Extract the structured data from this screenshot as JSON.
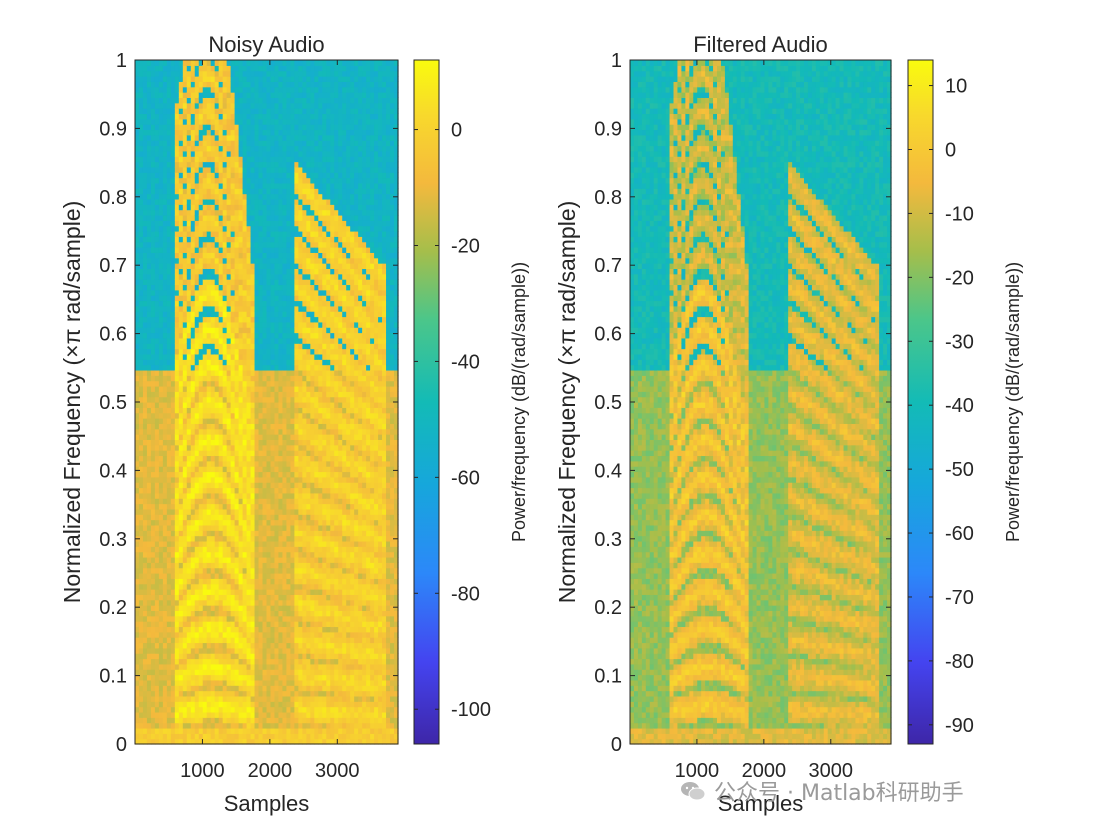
{
  "chart_data": [
    {
      "type": "heatmap",
      "title": "Noisy Audio",
      "xlabel": "Samples",
      "ylabel": "Normalized Frequency  (×π rad/sample)",
      "xlim": [
        0,
        3900
      ],
      "ylim": [
        0,
        1
      ],
      "x_ticks": [
        1000,
        2000,
        3000
      ],
      "x_tick_labels": [
        "1000",
        "2000",
        "3000"
      ],
      "y_ticks": [
        0,
        0.1,
        0.2,
        0.3,
        0.4,
        0.5,
        0.6,
        0.7,
        0.8,
        0.9,
        1
      ],
      "y_tick_labels": [
        "0",
        "0.1",
        "0.2",
        "0.3",
        "0.4",
        "0.5",
        "0.6",
        "0.7",
        "0.8",
        "0.9",
        "1"
      ],
      "colorbar": {
        "label": "Power/frequency (dB/(rad/sample))",
        "clim": [
          -106,
          12
        ],
        "ticks": [
          0,
          -20,
          -40,
          -60,
          -80,
          -100
        ],
        "tick_labels": [
          "0",
          "-20",
          "-40",
          "-60",
          "-80",
          "-100"
        ],
        "colormap": "parula"
      },
      "description_values": {
        "noise_floor_db_below_0_55": -12,
        "background_db_above_0_55": -52,
        "harmonic_peak_db": 5
      }
    },
    {
      "type": "heatmap",
      "title": "Filtered Audio",
      "xlabel": "Samples",
      "ylabel": "Normalized Frequency  (×π rad/sample)",
      "xlim": [
        0,
        3900
      ],
      "ylim": [
        0,
        1
      ],
      "x_ticks": [
        1000,
        2000,
        3000
      ],
      "x_tick_labels": [
        "1000",
        "2000",
        "3000"
      ],
      "y_ticks": [
        0,
        0.1,
        0.2,
        0.3,
        0.4,
        0.5,
        0.6,
        0.7,
        0.8,
        0.9,
        1
      ],
      "y_tick_labels": [
        "0",
        "0.1",
        "0.2",
        "0.3",
        "0.4",
        "0.5",
        "0.6",
        "0.7",
        "0.8",
        "0.9",
        "1"
      ],
      "colorbar": {
        "label": "Power/frequency (dB/(rad/sample))",
        "clim": [
          -93,
          14
        ],
        "ticks": [
          10,
          0,
          -10,
          -20,
          -30,
          -40,
          -50,
          -60,
          -70,
          -80,
          -90
        ],
        "tick_labels": [
          "10",
          "0",
          "-10",
          "-20",
          "-30",
          "-40",
          "-50",
          "-60",
          "-70",
          "-80",
          "-90"
        ],
        "colormap": "parula"
      },
      "description_values": {
        "noise_floor_db_below_0_55": -18,
        "background_db_above_0_55": -40,
        "harmonic_peak_db": 2
      }
    }
  ],
  "watermark": {
    "text": "公众号 · Matlab科研助手",
    "icon": "wechat-icon"
  }
}
